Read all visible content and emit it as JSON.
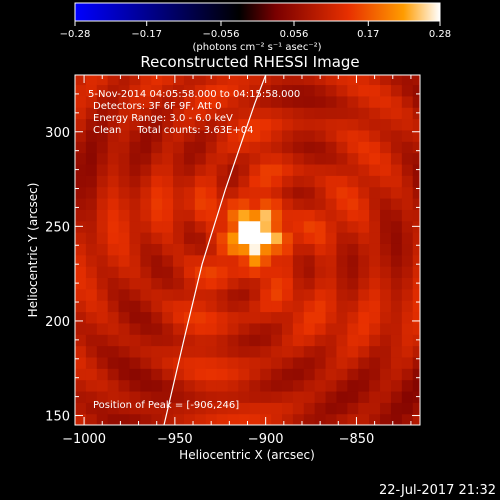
{
  "chart_data": {
    "type": "heatmap",
    "title": "Reconstructed RHESSI Image",
    "xlabel": "Heliocentric X (arcsec)",
    "ylabel": "Heliocentric Y (arcsec)",
    "xlim": [
      -1005,
      -815
    ],
    "ylim": [
      145,
      330
    ],
    "x_ticks": [
      -1000,
      -950,
      -900,
      -850
    ],
    "x_tick_labels": [
      "−1000",
      "−950",
      "−900",
      "−850"
    ],
    "y_ticks": [
      150,
      200,
      250,
      300
    ],
    "y_tick_labels": [
      "150",
      "200",
      "250",
      "300"
    ],
    "peak": [
      -906,
      246
    ],
    "annotations": [
      "5-Nov-2014 04:05:58.000 to 04:15:58.000",
      "Detectors: 3F 6F 9F, Att 0",
      "Energy Range: 3.0 - 6.0 keV",
      "Clean     Total counts: 3.63E+04"
    ],
    "peak_label": "Position of Peak = [-906,246]",
    "colorbar": {
      "min": -0.28,
      "max": 0.28,
      "ticks": [
        -0.28,
        -0.17,
        -0.056,
        0.056,
        0.17,
        0.28
      ],
      "tick_labels": [
        "−0.28",
        "−0.17",
        "−0.056",
        "0.056",
        "0.17",
        "0.28"
      ],
      "units": "(photons cm⁻² s⁻¹ asec⁻²)",
      "colors": [
        "#0000ff",
        "#000000",
        "#7a0000",
        "#e83000",
        "#ff9c00",
        "#ffffff"
      ]
    },
    "limb_curve": [
      [
        -956,
        145
      ],
      [
        -945,
        190
      ],
      [
        -935,
        230
      ],
      [
        -922,
        270
      ],
      [
        -906,
        315
      ],
      [
        -900,
        330
      ]
    ]
  },
  "footer": {
    "timestamp": "22-Jul-2017 21:32"
  }
}
